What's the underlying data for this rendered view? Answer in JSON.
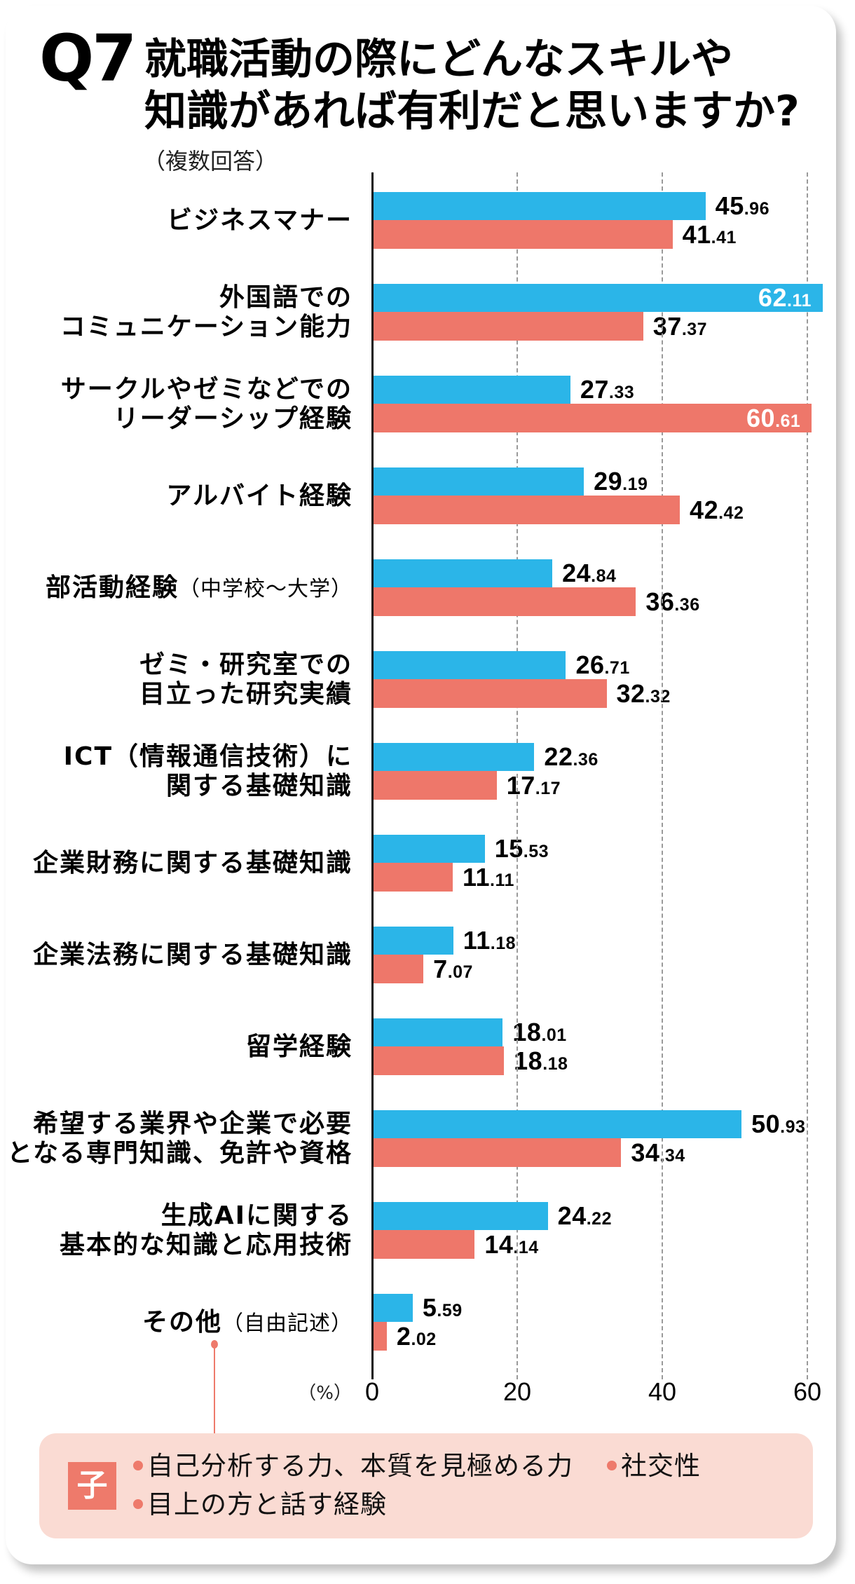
{
  "header": {
    "number": "Q7"
  },
  "chart_data": {
    "type": "bar",
    "orientation": "horizontal",
    "title": "就職活動の際にどんなスキルや\n知識があれば有利だと思いますか?",
    "subtitle": "（複数回答）",
    "xlabel": "（%）",
    "ylabel": "",
    "xticks": [
      0,
      20,
      40,
      60
    ],
    "xlim": [
      0,
      64
    ],
    "grid": "vertical dashed",
    "legend": "none",
    "categories": [
      "ビジネスマナー",
      "外国語での\nコミュニケーション能力",
      "サークルやゼミなどでの\nリーダーシップ経験",
      "アルバイト経験",
      "部活動経験",
      "ゼミ・研究室での\n目立った研究実績",
      "ICT（情報通信技術）に\n関する基礎知識",
      "企業財務に関する基礎知識",
      "企業法務に関する基礎知識",
      "留学経験",
      "希望する業界や企業で必要\nとなる専門知識、免許や資格",
      "生成AIに関する\n基本的な知識と応用技術",
      "その他"
    ],
    "category_notes": [
      "",
      "",
      "",
      "",
      "（中学校〜大学）",
      "",
      "",
      "",
      "",
      "",
      "",
      "",
      "（自由記述）"
    ],
    "series": [
      {
        "name": "",
        "color": "#2bb5e8",
        "values": [
          45.96,
          62.11,
          27.33,
          29.19,
          24.84,
          26.71,
          22.36,
          15.53,
          11.18,
          18.01,
          50.93,
          24.22,
          5.59
        ]
      },
      {
        "name": "",
        "color": "#ee776a",
        "values": [
          41.41,
          37.37,
          60.61,
          42.42,
          36.36,
          32.32,
          17.17,
          11.11,
          7.07,
          18.18,
          34.34,
          14.14,
          2.02
        ]
      }
    ]
  },
  "callout": {
    "badge": "子",
    "accent_color": "#ee7a6b",
    "background_color": "#fadbd3",
    "items": [
      "自己分析する力、本質を見極める力",
      "社交性",
      "目上の方と話す経験"
    ]
  }
}
